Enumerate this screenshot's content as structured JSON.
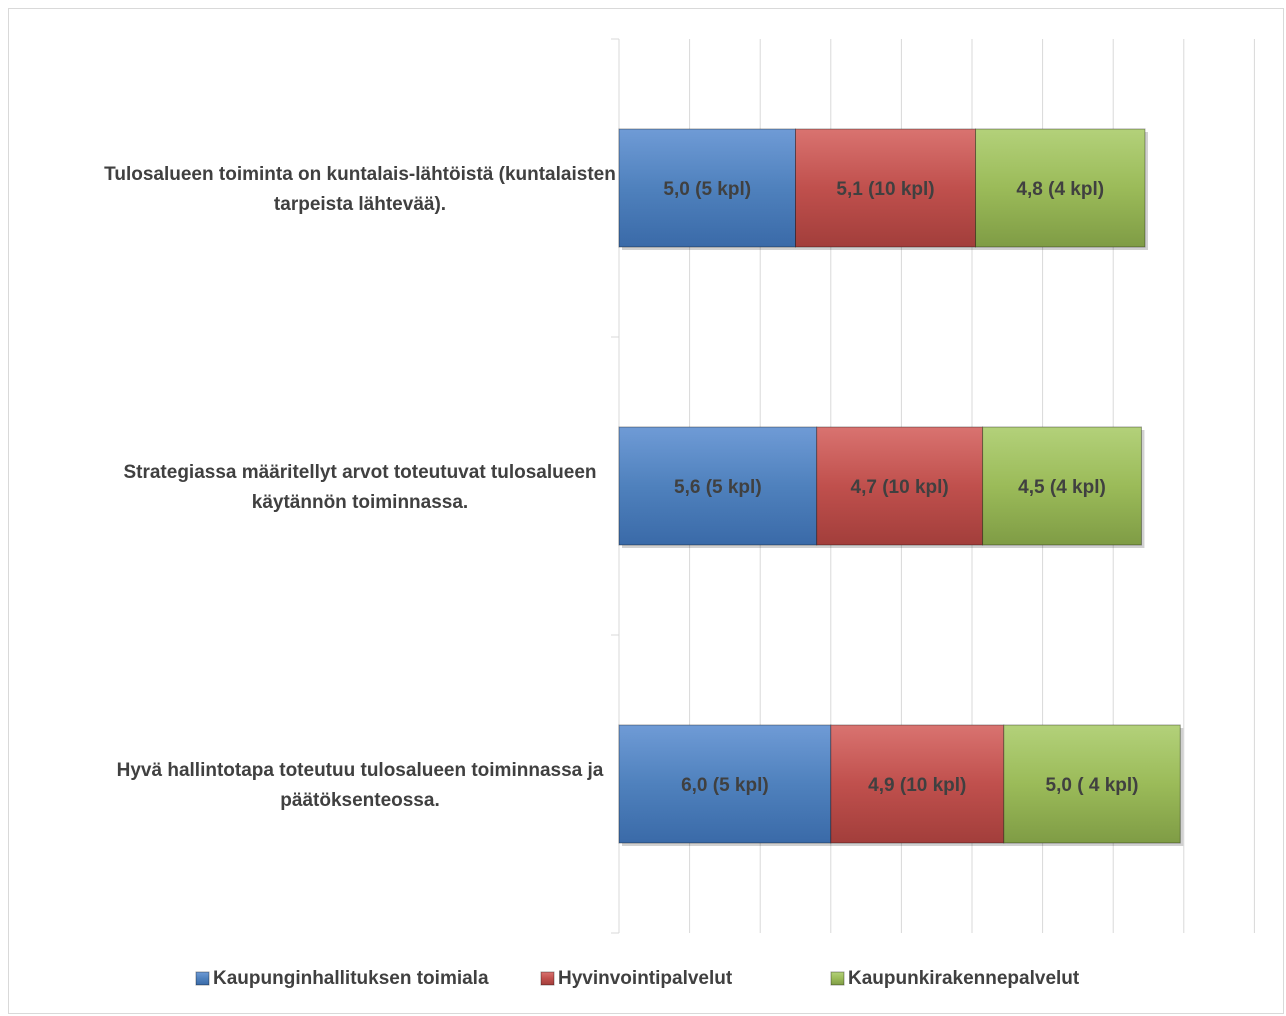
{
  "chart_data": {
    "type": "bar",
    "orientation": "horizontal",
    "stacked": true,
    "categories": [
      [
        "Tulosalueen toiminta on kuntalais-lähtöistä (kuntalaisten",
        "tarpeista lähtevää)."
      ],
      [
        "Strategiassa määritellyt arvot toteutuvat tulosalueen",
        "käytännön toiminnassa."
      ],
      [
        "Hyvä hallintotapa toteutuu tulosalueen toiminnassa ja",
        "päätöksenteossa."
      ]
    ],
    "series": [
      {
        "name": "Kaupunginhallituksen toimiala",
        "color": "#4f81bd",
        "values": [
          5.0,
          5.6,
          6.0
        ],
        "labels": [
          "5,0  (5 kpl)",
          "5,6 (5 kpl)",
          "6,0 (5 kpl)"
        ]
      },
      {
        "name": "Hyvinvointipalvelut",
        "color": "#c0504d",
        "values": [
          5.1,
          4.7,
          4.9
        ],
        "labels": [
          "5,1 (10 kpl)",
          "4,7 (10 kpl)",
          "4,9 (10 kpl)"
        ]
      },
      {
        "name": "Kaupunkirakennepalvelut",
        "color": "#9bbb59",
        "values": [
          4.8,
          4.5,
          5.0
        ],
        "labels": [
          "4,8 (4 kpl)",
          "4,5 (4 kpl)",
          "5,0 ( 4 kpl)"
        ]
      }
    ],
    "xlim": [
      0,
      18
    ],
    "grid": true,
    "legend": "bottom"
  }
}
